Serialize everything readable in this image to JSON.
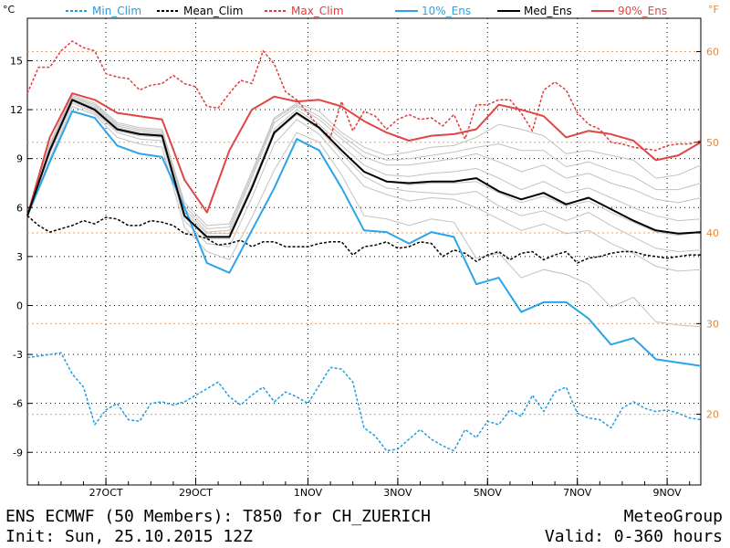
{
  "chart_data": {
    "type": "line",
    "left_unit": "°C",
    "right_unit": "°F",
    "y_ticks": [
      15,
      12,
      9,
      6,
      3,
      0,
      -3,
      -6,
      -9
    ],
    "y_tick_labels": [
      "15",
      "12",
      "9",
      "6",
      "3",
      "0",
      "-3",
      "-6",
      "-9"
    ],
    "f_ticks": [
      60,
      50,
      40,
      30,
      20
    ],
    "f_tick_labels": [
      "60",
      "50",
      "40",
      "30",
      "20"
    ],
    "ylim": [
      -11,
      17.6
    ],
    "xlim": [
      0,
      360
    ],
    "x_ticks": [
      42,
      90,
      150,
      198,
      246,
      294,
      342
    ],
    "x_tick_labels": [
      "27OCT",
      "29OCT",
      "1NOV",
      "3NOV",
      "5NOV",
      "7NOV",
      "9NOV"
    ],
    "grid": true,
    "legend_position": "top",
    "colors": {
      "min_clim": "#1f9ee0",
      "mean_clim": "#000000",
      "max_clim": "#e03b3b",
      "ens_10": "#2aa4ea",
      "ens_med": "#000000",
      "ens_90": "#e24545",
      "members": "#c2c2c2",
      "grid": "#000000",
      "f_grid": "#f0a060"
    },
    "series": [
      {
        "name": "Min_Clim",
        "style": "dashed",
        "color": "#1f9ee0",
        "x": [
          0,
          6,
          12,
          18,
          24,
          30,
          36,
          42,
          48,
          54,
          60,
          66,
          72,
          78,
          84,
          90,
          96,
          102,
          108,
          114,
          120,
          126,
          132,
          138,
          144,
          150,
          156,
          162,
          168,
          174,
          180,
          186,
          192,
          198,
          204,
          210,
          216,
          222,
          228,
          234,
          240,
          246,
          252,
          258,
          264,
          270,
          276,
          282,
          288,
          294,
          300,
          306,
          312,
          318,
          324,
          330,
          336,
          342,
          348,
          354,
          360
        ],
        "y": [
          -3.2,
          -3.1,
          -3.0,
          -2.9,
          -4.2,
          -5.0,
          -7.3,
          -6.4,
          -6.0,
          -7.0,
          -7.1,
          -6.0,
          -5.9,
          -6.1,
          -5.9,
          -5.5,
          -5.1,
          -4.7,
          -5.6,
          -6.1,
          -5.5,
          -5.0,
          -5.9,
          -5.3,
          -5.6,
          -6.0,
          -4.9,
          -3.8,
          -3.9,
          -4.7,
          -7.5,
          -8.0,
          -8.9,
          -8.8,
          -8.2,
          -7.6,
          -8.2,
          -8.6,
          -8.9,
          -7.6,
          -8.1,
          -7.1,
          -7.3,
          -6.4,
          -6.8,
          -5.5,
          -6.5,
          -5.3,
          -5.0,
          -6.6,
          -6.9,
          -7.0,
          -7.5,
          -6.3,
          -5.9,
          -6.3,
          -6.5,
          -6.4,
          -6.6,
          -6.9,
          -7.0
        ]
      },
      {
        "name": "Mean_Clim",
        "style": "dashed",
        "color": "#000000",
        "x": [
          0,
          6,
          12,
          18,
          24,
          30,
          36,
          42,
          48,
          54,
          60,
          66,
          72,
          78,
          84,
          90,
          96,
          102,
          108,
          114,
          120,
          126,
          132,
          138,
          144,
          150,
          156,
          162,
          168,
          174,
          180,
          186,
          192,
          198,
          204,
          210,
          216,
          222,
          228,
          234,
          240,
          246,
          252,
          258,
          264,
          270,
          276,
          282,
          288,
          294,
          300,
          306,
          312,
          318,
          324,
          330,
          336,
          342,
          348,
          354,
          360
        ],
        "y": [
          5.5,
          4.9,
          4.5,
          4.7,
          4.9,
          5.2,
          5.0,
          5.4,
          5.3,
          4.9,
          4.9,
          5.2,
          5.1,
          4.9,
          4.4,
          4.3,
          4.1,
          3.7,
          3.8,
          4.0,
          3.6,
          3.9,
          3.9,
          3.6,
          3.6,
          3.6,
          3.8,
          3.9,
          3.9,
          3.1,
          3.6,
          3.7,
          3.9,
          3.5,
          3.6,
          3.9,
          3.8,
          3.0,
          3.4,
          3.2,
          2.7,
          3.1,
          3.3,
          2.8,
          3.2,
          3.3,
          2.8,
          3.1,
          3.3,
          2.6,
          2.9,
          3.0,
          3.2,
          3.3,
          3.3,
          3.1,
          3.0,
          2.9,
          3.0,
          3.1,
          3.1
        ]
      },
      {
        "name": "Max_Clim",
        "style": "dashed",
        "color": "#e03b3b",
        "x": [
          0,
          6,
          12,
          18,
          24,
          30,
          36,
          42,
          48,
          54,
          60,
          66,
          72,
          78,
          84,
          90,
          96,
          102,
          108,
          114,
          120,
          126,
          132,
          138,
          144,
          150,
          156,
          162,
          168,
          174,
          180,
          186,
          192,
          198,
          204,
          210,
          216,
          222,
          228,
          234,
          240,
          246,
          252,
          258,
          264,
          270,
          276,
          282,
          288,
          294,
          300,
          306,
          312,
          318,
          324,
          330,
          336,
          342,
          348,
          354,
          360
        ],
        "y": [
          13.0,
          14.6,
          14.6,
          15.6,
          16.2,
          15.8,
          15.6,
          14.2,
          14.0,
          13.9,
          13.2,
          13.5,
          13.6,
          14.1,
          13.6,
          13.4,
          12.2,
          12.1,
          13.0,
          13.8,
          13.6,
          15.6,
          14.8,
          13.1,
          12.6,
          11.8,
          10.9,
          10.3,
          12.5,
          10.7,
          11.9,
          11.6,
          10.8,
          11.4,
          11.7,
          11.4,
          11.5,
          11.0,
          11.7,
          10.2,
          12.3,
          12.3,
          12.6,
          12.6,
          11.8,
          10.7,
          13.2,
          13.7,
          13.2,
          11.8,
          11.1,
          10.8,
          10.0,
          9.9,
          9.7,
          9.6,
          9.5,
          9.8,
          9.9,
          9.9,
          10.1
        ]
      },
      {
        "name": "10%_Ens",
        "style": "solid",
        "color": "#2aa4ea",
        "x": [
          0,
          12,
          24,
          36,
          48,
          60,
          72,
          84,
          96,
          108,
          120,
          132,
          144,
          156,
          168,
          180,
          192,
          204,
          216,
          228,
          240,
          252,
          264,
          276,
          288,
          300,
          312,
          324,
          336,
          348,
          360
        ],
        "y": [
          5.5,
          8.8,
          11.9,
          11.5,
          9.8,
          9.3,
          9.1,
          6.0,
          2.6,
          2.0,
          4.6,
          7.2,
          10.2,
          9.5,
          7.2,
          4.6,
          4.5,
          3.8,
          4.5,
          4.2,
          1.3,
          1.7,
          -0.4,
          0.2,
          0.2,
          -0.8,
          -2.4,
          -2.0,
          -3.3,
          -3.5,
          -3.7
        ]
      },
      {
        "name": "Med_Ens",
        "style": "solid",
        "color": "#000000",
        "x": [
          0,
          12,
          24,
          36,
          48,
          60,
          72,
          84,
          96,
          108,
          120,
          132,
          144,
          156,
          168,
          180,
          192,
          204,
          216,
          228,
          240,
          252,
          264,
          276,
          288,
          300,
          312,
          324,
          336,
          348,
          360
        ],
        "y": [
          5.5,
          9.5,
          12.6,
          12.0,
          10.8,
          10.5,
          10.4,
          5.5,
          4.2,
          4.2,
          7.2,
          10.6,
          11.8,
          10.9,
          9.5,
          8.2,
          7.6,
          7.5,
          7.6,
          7.6,
          7.8,
          7.0,
          6.5,
          6.9,
          6.2,
          6.6,
          5.9,
          5.2,
          4.6,
          4.4,
          4.5
        ]
      },
      {
        "name": "90%_Ens",
        "style": "solid",
        "color": "#e24545",
        "x": [
          0,
          12,
          24,
          36,
          48,
          60,
          72,
          84,
          96,
          108,
          120,
          132,
          144,
          156,
          168,
          180,
          192,
          204,
          216,
          228,
          240,
          252,
          264,
          276,
          288,
          300,
          312,
          324,
          336,
          348,
          360
        ],
        "y": [
          5.5,
          10.3,
          13.0,
          12.6,
          11.8,
          11.6,
          11.4,
          7.7,
          5.7,
          9.5,
          12.0,
          12.8,
          12.5,
          12.6,
          12.2,
          11.3,
          10.6,
          10.1,
          10.4,
          10.5,
          10.8,
          12.3,
          12.0,
          11.6,
          10.3,
          10.7,
          10.5,
          10.1,
          8.9,
          9.2,
          10.0
        ]
      }
    ],
    "ensemble_members": [
      [
        5.5,
        9.6,
        12.7,
        12.1,
        10.9,
        10.6,
        10.5,
        5.7,
        4.4,
        4.4,
        7.4,
        10.8,
        12.0,
        11.1,
        9.8,
        8.6,
        8.0,
        7.9,
        8.1,
        8.2,
        8.4,
        7.8,
        7.1,
        7.6,
        6.9,
        7.2,
        6.6,
        6.0,
        5.5,
        5.2,
        5.3
      ],
      [
        5.5,
        9.4,
        12.5,
        11.9,
        10.7,
        10.4,
        10.3,
        5.4,
        4.1,
        4.1,
        7.1,
        10.5,
        11.7,
        10.8,
        9.3,
        7.9,
        7.2,
        7.0,
        6.9,
        6.8,
        7.0,
        6.1,
        5.5,
        5.8,
        5.2,
        5.7,
        4.9,
        4.2,
        3.5,
        3.3,
        3.4
      ],
      [
        5.5,
        9.9,
        12.9,
        12.4,
        11.2,
        10.9,
        10.8,
        6.3,
        4.9,
        5.0,
        8.2,
        11.5,
        12.4,
        11.9,
        10.6,
        9.7,
        9.2,
        9.4,
        9.7,
        9.8,
        10.3,
        11.1,
        10.8,
        10.4,
        9.3,
        9.5,
        9.2,
        8.9,
        7.8,
        8.0,
        8.6
      ],
      [
        5.5,
        9.0,
        12.2,
        11.7,
        10.3,
        9.9,
        9.7,
        4.8,
        3.3,
        2.8,
        5.4,
        8.3,
        10.6,
        10.0,
        8.0,
        5.5,
        5.3,
        4.9,
        5.3,
        5.1,
        2.9,
        3.2,
        1.7,
        2.2,
        1.9,
        1.3,
        -0.1,
        0.5,
        -1.0,
        -1.2,
        -1.3
      ],
      [
        5.5,
        9.7,
        12.8,
        12.2,
        11.0,
        10.7,
        10.6,
        5.9,
        4.5,
        4.6,
        7.8,
        11.2,
        12.2,
        11.4,
        10.2,
        9.1,
        8.6,
        8.6,
        8.8,
        9.0,
        9.3,
        8.8,
        8.2,
        8.6,
        7.8,
        8.1,
        7.5,
        7.1,
        6.5,
        6.3,
        6.6
      ],
      [
        5.5,
        9.3,
        12.4,
        11.8,
        10.6,
        10.2,
        10.1,
        5.2,
        3.8,
        3.6,
        6.6,
        9.9,
        11.4,
        10.5,
        8.9,
        7.3,
        6.8,
        6.4,
        6.6,
        6.5,
        6.0,
        5.3,
        4.6,
        5.0,
        4.4,
        4.6,
        3.8,
        3.2,
        2.4,
        2.1,
        2.2
      ],
      [
        5.5,
        9.5,
        12.6,
        12.0,
        10.8,
        10.5,
        10.4,
        5.5,
        4.2,
        4.2,
        7.2,
        10.6,
        11.8,
        10.9,
        9.5,
        8.2,
        7.6,
        7.4,
        7.5,
        7.5,
        7.6,
        6.9,
        6.3,
        6.7,
        6.1,
        6.4,
        5.7,
        5.1,
        4.5,
        4.3,
        4.5
      ],
      [
        5.5,
        9.8,
        12.8,
        12.3,
        11.1,
        10.8,
        10.7,
        6.1,
        4.7,
        4.8,
        8.0,
        11.4,
        12.3,
        11.6,
        10.4,
        9.4,
        8.9,
        9.0,
        9.2,
        9.4,
        9.7,
        9.9,
        9.5,
        9.5,
        8.5,
        8.8,
        8.3,
        7.9,
        7.1,
        7.1,
        7.5
      ]
    ],
    "footer": {
      "title": "ENS ECMWF (50 Members): T850 for CH_ZUERICH",
      "init": "Init: Sun, 25.10.2015 12Z",
      "provider": "MeteoGroup",
      "valid": "Valid: 0-360 hours"
    }
  }
}
